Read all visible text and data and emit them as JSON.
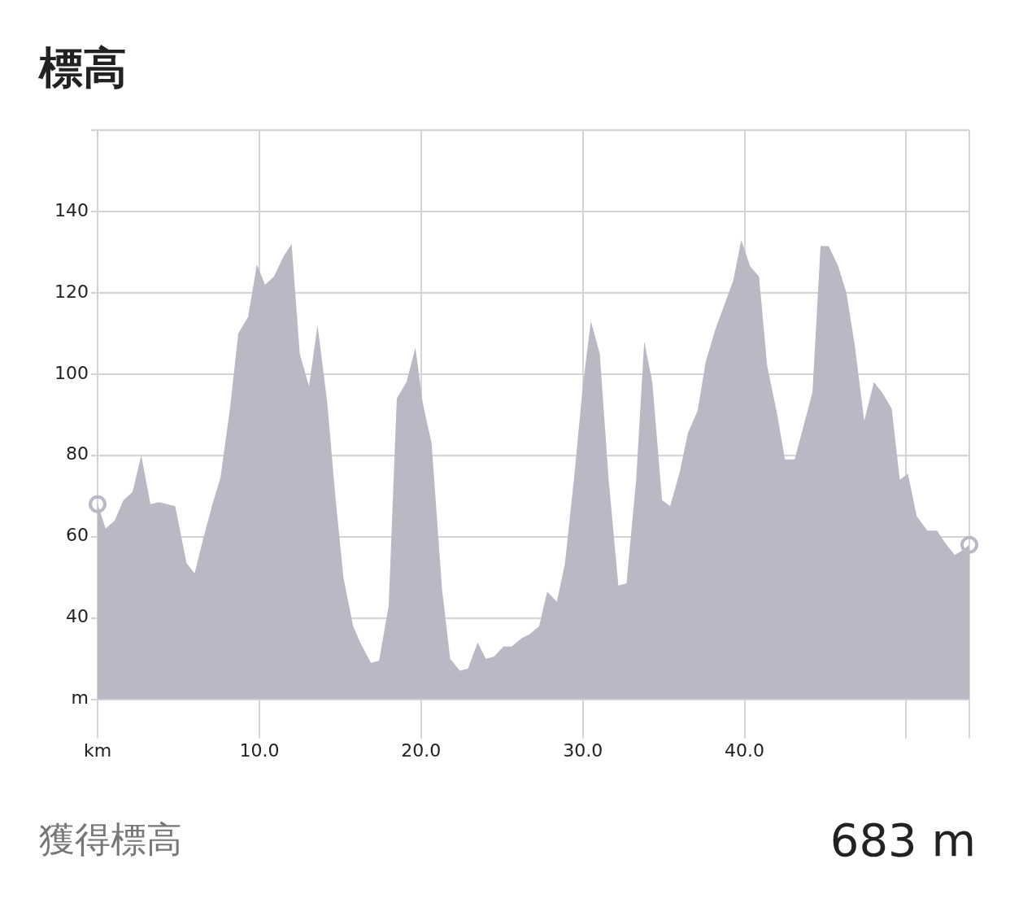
{
  "chart_data": {
    "type": "area",
    "title": "標高",
    "x": [
      0,
      0.5,
      1.06,
      1.6,
      2.16,
      2.7,
      3.27,
      3.8,
      4.8,
      5.5,
      6.0,
      6.5,
      7.1,
      7.6,
      8.2,
      8.7,
      9.3,
      9.85,
      10.35,
      10.9,
      11.5,
      12.0,
      12.5,
      13.07,
      13.6,
      14.2,
      14.7,
      15.2,
      15.8,
      16.3,
      16.9,
      17.4,
      18.0,
      18.5,
      19.1,
      19.65,
      20.1,
      20.65,
      21.3,
      21.8,
      22.4,
      22.9,
      23.5,
      24.0,
      24.5,
      25.1,
      25.6,
      26.2,
      26.7,
      27.3,
      27.8,
      28.4,
      28.9,
      29.5,
      30.0,
      30.5,
      31.05,
      31.6,
      32.2,
      32.7,
      33.3,
      33.8,
      34.3,
      34.9,
      35.4,
      36.0,
      36.5,
      37.1,
      37.6,
      38.2,
      38.7,
      39.3,
      39.8,
      40.35,
      40.9,
      41.4,
      42.0,
      42.5,
      43.1,
      43.6,
      44.2,
      44.7,
      45.2,
      45.8,
      46.3,
      46.8,
      47.4,
      48.0,
      48.5,
      49.1,
      49.6,
      50.1,
      50.65,
      51.3,
      51.9,
      52.4,
      53.0,
      53.4,
      53.9
    ],
    "series": [
      {
        "color": "#b9b9c5",
        "values": [
          68,
          62,
          64,
          69,
          71,
          80,
          68,
          68.5,
          67.5,
          53.5,
          51,
          59,
          68,
          74.5,
          92,
          110,
          114,
          127,
          122,
          124,
          129,
          132,
          105,
          97,
          112,
          93,
          70,
          50,
          38,
          33.5,
          29,
          29.5,
          43,
          94,
          98,
          106.5,
          93,
          83,
          47,
          30,
          27,
          27.5,
          34,
          30,
          30.5,
          33,
          33,
          35,
          36,
          38,
          46.5,
          44,
          53.5,
          76,
          97,
          113,
          105,
          74,
          48,
          48.5,
          74,
          108,
          98,
          69,
          67.5,
          76,
          85.5,
          91,
          103,
          111,
          116.5,
          123,
          133,
          126.5,
          124,
          102,
          90.5,
          79,
          79,
          86.5,
          95.5,
          131.5,
          131.5,
          126.5,
          120,
          107.5,
          88.5,
          98,
          95.5,
          91.5,
          74,
          75.5,
          65,
          61.5,
          61.5,
          58.5,
          55.5,
          56.5,
          58
        ]
      },
      {
        "type": "scatter",
        "color": "#b9b9c5",
        "marker": "circle",
        "x": [
          0,
          53.9
        ],
        "values": [
          68,
          58
        ]
      }
    ],
    "xlim": [
      0,
      53.9
    ],
    "xticks": [
      {
        "value": 0,
        "label": "km"
      },
      {
        "value": 10,
        "label": "10.0"
      },
      {
        "value": 20,
        "label": "20.0"
      },
      {
        "value": 30,
        "label": "30.0"
      },
      {
        "value": 40,
        "label": "40.0"
      },
      {
        "value": 50,
        "label": null
      }
    ],
    "ylim": [
      20,
      160
    ],
    "yticks": [
      {
        "value": 20,
        "label": "m"
      },
      40,
      60,
      80,
      100,
      120,
      140,
      {
        "value": 160,
        "label": null
      }
    ],
    "grid": true,
    "legend": false,
    "annotations": [
      "獲得標高",
      "683 m"
    ]
  }
}
